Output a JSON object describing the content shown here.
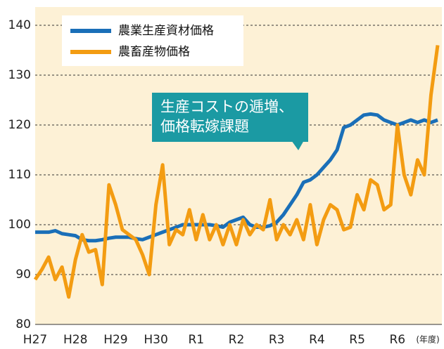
{
  "chart_data": {
    "type": "line",
    "x_label": "(年度)",
    "annotation": [
      "生産コストの逓増、",
      "価格転嫁課題"
    ],
    "categories": [
      "H27",
      null,
      null,
      null,
      null,
      null,
      "H28",
      null,
      null,
      null,
      null,
      null,
      "H29",
      null,
      null,
      null,
      null,
      null,
      "H30",
      null,
      null,
      null,
      null,
      null,
      "R1",
      null,
      null,
      null,
      null,
      null,
      "R2",
      null,
      null,
      null,
      null,
      null,
      "R3",
      null,
      null,
      null,
      null,
      null,
      "R4",
      null,
      null,
      null,
      null,
      null,
      "R5",
      null,
      null,
      null,
      null,
      null,
      "R6",
      null,
      null,
      null,
      null,
      null,
      null
    ],
    "series": [
      {
        "name": "農業生産資材価格",
        "color": "#1a6fb8",
        "values": [
          98.5,
          98.5,
          98.5,
          98.8,
          98.2,
          98,
          97.8,
          97,
          96.8,
          96.8,
          97,
          97.3,
          97.5,
          97.5,
          97.5,
          97.2,
          97,
          97.5,
          98,
          98.5,
          99,
          99.5,
          100,
          100,
          100,
          100,
          100,
          99.8,
          99.5,
          100.5,
          101,
          101.5,
          100,
          99.5,
          99.5,
          99.8,
          100.5,
          102,
          104,
          106,
          108.5,
          109,
          110,
          111.5,
          113,
          115,
          119.5,
          120,
          121,
          122,
          122.2,
          122,
          121,
          120.5,
          120,
          120.5,
          121,
          120.5,
          121,
          120.5,
          121
        ]
      },
      {
        "name": "農畜産物価格",
        "color": "#f39c12",
        "values": [
          89,
          91,
          93.5,
          89,
          91.5,
          85.5,
          93,
          98,
          94.5,
          95,
          88,
          108,
          104,
          99,
          98,
          97,
          94,
          90,
          104,
          112,
          96,
          99,
          98,
          103,
          97,
          102,
          97,
          100,
          96,
          100,
          96,
          101,
          98,
          100,
          99,
          105,
          97,
          100,
          98,
          101,
          97,
          104,
          96,
          101,
          104,
          103,
          99,
          99.5,
          106,
          103,
          109,
          108,
          103,
          104,
          120,
          110,
          106,
          113,
          110,
          126,
          136
        ]
      }
    ],
    "ylim": [
      80,
      140
    ],
    "yticks": [
      80,
      90,
      100,
      110,
      120,
      130,
      140
    ],
    "grid": true,
    "legend": "upper left"
  }
}
